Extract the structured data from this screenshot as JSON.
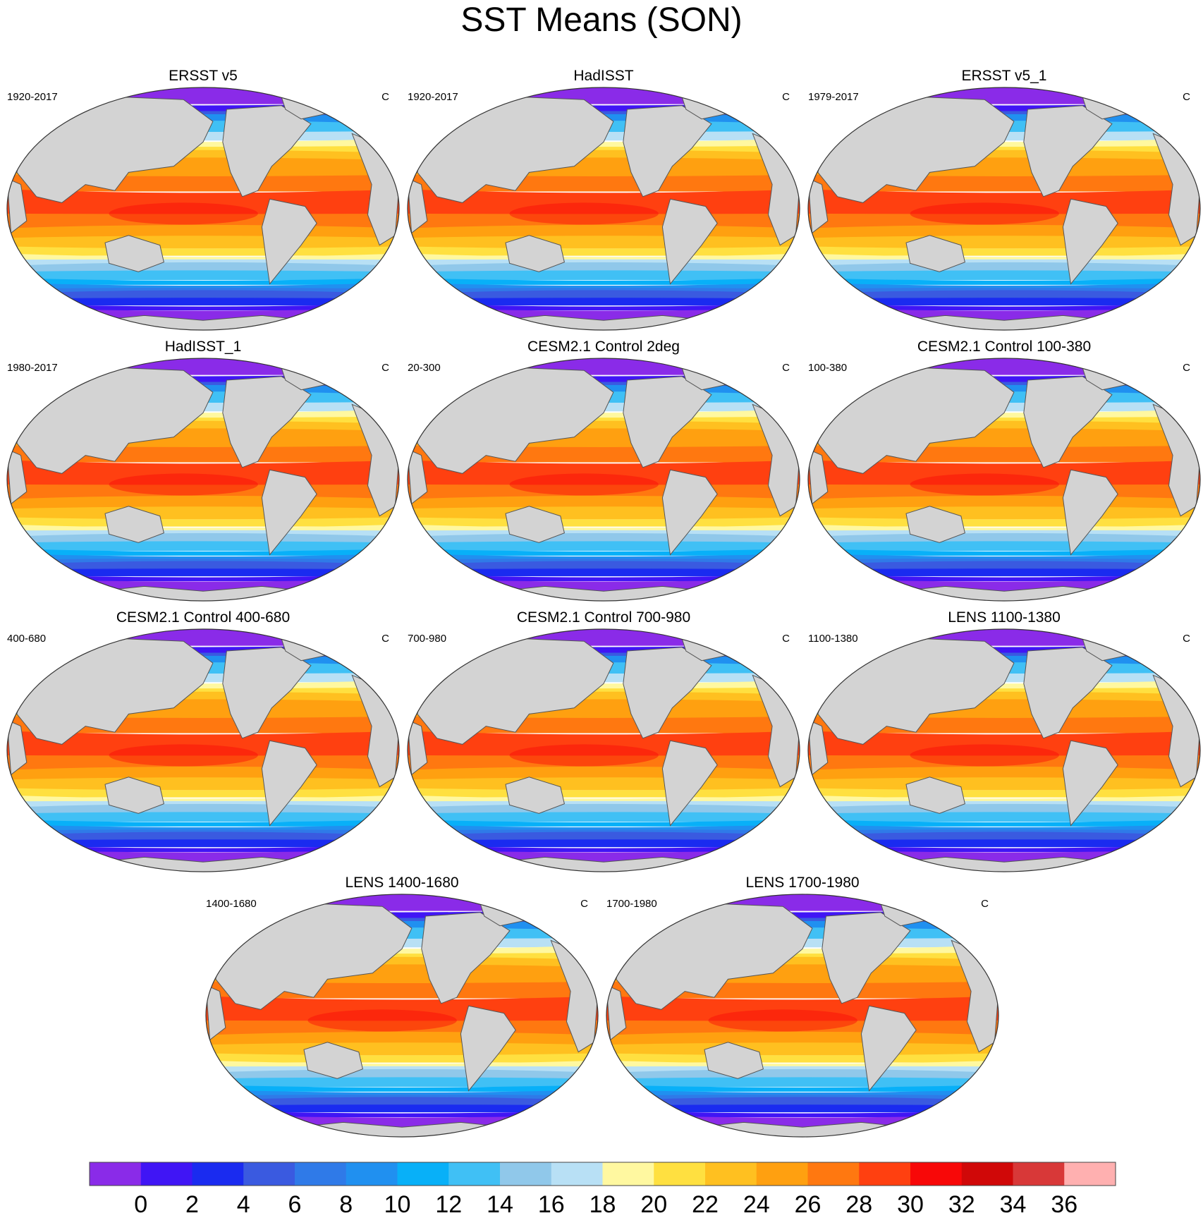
{
  "title": "SST Means (SON)",
  "units": "C",
  "panels": [
    {
      "title": "ERSST v5",
      "period": "1920-2017"
    },
    {
      "title": "HadISST",
      "period": "1920-2017"
    },
    {
      "title": "ERSST v5_1",
      "period": "1979-2017"
    },
    {
      "title": "HadISST_1",
      "period": "1980-2017"
    },
    {
      "title": "CESM2.1 Control 2deg",
      "period": "20-300"
    },
    {
      "title": "CESM2.1 Control 100-380",
      "period": "100-380"
    },
    {
      "title": "CESM2.1 Control 400-680",
      "period": "400-680"
    },
    {
      "title": "CESM2.1 Control 700-980",
      "period": "700-980"
    },
    {
      "title": "LENS 1100-1380",
      "period": "1100-1380"
    },
    {
      "title": "LENS 1400-1680",
      "period": "1400-1680"
    },
    {
      "title": "LENS 1700-1980",
      "period": "1700-1980"
    }
  ],
  "colorbar": {
    "labels": [
      "0",
      "2",
      "4",
      "6",
      "8",
      "10",
      "12",
      "14",
      "16",
      "18",
      "20",
      "22",
      "24",
      "26",
      "28",
      "30",
      "32",
      "34",
      "36"
    ],
    "colors": [
      "#8a2be8",
      "#4015f5",
      "#1a2bf0",
      "#3a5ae0",
      "#2f7ae8",
      "#2090f0",
      "#08b0f8",
      "#40c0f5",
      "#90c8ea",
      "#b8e0f5",
      "#fff8a0",
      "#ffe040",
      "#ffc020",
      "#ffa010",
      "#ff7810",
      "#ff4010",
      "#f80808",
      "#d00808",
      "#d83838",
      "#ffb0b0"
    ]
  }
}
